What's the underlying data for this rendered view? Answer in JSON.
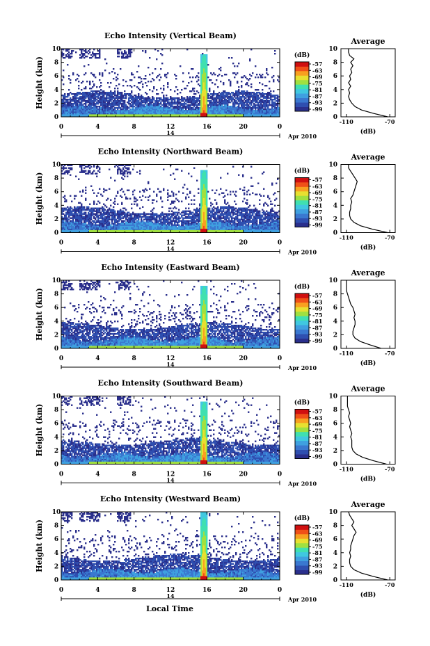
{
  "colors": {
    "colormap": [
      "#2a2f8c",
      "#2f4fb0",
      "#3a78d0",
      "#3fa0e0",
      "#40c8e0",
      "#40e0b0",
      "#a0e040",
      "#e8e030",
      "#f8a020",
      "#f05018",
      "#d01010"
    ]
  },
  "x_axis_label": "Local Time",
  "chart_data": [
    {
      "type": "heatmap",
      "title": "Echo Intensity (Vertical Beam)",
      "ylabel": "Height (km)",
      "ylim": [
        0,
        10
      ],
      "yticks": [
        "0",
        "2",
        "4",
        "6",
        "8",
        "10"
      ],
      "xlim": [
        0,
        24
      ],
      "xticks": [
        "0",
        "4",
        "8",
        "12",
        "16",
        "20",
        "0"
      ],
      "date_marker": "14",
      "date_label": "Apr 2010",
      "colorbar": {
        "unit": "(dB)",
        "ticks": [
          "-57",
          "-63",
          "-69",
          "-75",
          "-81",
          "-87",
          "-93",
          "-99"
        ]
      },
      "storm_time": 15.6,
      "profile": {
        "title": "Average",
        "xlabel": "(dB)",
        "xticks": [
          "-110",
          "-70"
        ],
        "xlim": [
          -115,
          -65
        ],
        "ylim": [
          0,
          10
        ],
        "heights": [
          0,
          0.5,
          1,
          1.5,
          2,
          2.5,
          3,
          3.5,
          4,
          4.5,
          5,
          5.5,
          6,
          6.5,
          7,
          7.5,
          8,
          8.5,
          9,
          9.5,
          10
        ],
        "values": [
          -72,
          -85,
          -96,
          -102,
          -105,
          -107,
          -108,
          -107,
          -108,
          -106,
          -108,
          -106,
          -107,
          -105,
          -106,
          -104,
          -106,
          -103,
          -107,
          -108,
          -108
        ]
      }
    },
    {
      "type": "heatmap",
      "title": "Echo Intensity (Northward Beam)",
      "ylabel": "Height (km)",
      "ylim": [
        0,
        10
      ],
      "yticks": [
        "0",
        "2",
        "4",
        "6",
        "8",
        "10"
      ],
      "xlim": [
        0,
        24
      ],
      "xticks": [
        "0",
        "4",
        "8",
        "12",
        "16",
        "20",
        "0"
      ],
      "date_marker": "14",
      "date_label": "Apr 2010",
      "colorbar": {
        "unit": "(dB)",
        "ticks": [
          "-57",
          "-63",
          "-69",
          "-75",
          "-81",
          "-87",
          "-93",
          "-99"
        ]
      },
      "storm_time": 15.6,
      "profile": {
        "title": "Average",
        "xlabel": "(dB)",
        "xticks": [
          "-110",
          "-70"
        ],
        "xlim": [
          -115,
          -65
        ],
        "ylim": [
          0,
          10
        ],
        "heights": [
          0,
          0.5,
          1,
          1.5,
          2,
          2.5,
          3,
          3.5,
          4,
          4.5,
          5,
          5.5,
          6,
          6.5,
          7,
          7.5,
          8,
          8.5,
          9,
          9.5,
          10
        ],
        "values": [
          -72,
          -86,
          -97,
          -103,
          -106,
          -107,
          -107,
          -106,
          -106,
          -105,
          -106,
          -104,
          -103,
          -102,
          -101,
          -100,
          -102,
          -104,
          -106,
          -108,
          -108
        ]
      }
    },
    {
      "type": "heatmap",
      "title": "Echo Intensity (Eastward Beam)",
      "ylabel": "Height (km)",
      "ylim": [
        0,
        10
      ],
      "yticks": [
        "0",
        "2",
        "4",
        "6",
        "8",
        "10"
      ],
      "xlim": [
        0,
        24
      ],
      "xticks": [
        "0",
        "4",
        "8",
        "12",
        "16",
        "20",
        "0"
      ],
      "date_marker": "14",
      "date_label": "Apr 2010",
      "colorbar": {
        "unit": "(dB)",
        "ticks": [
          "-57",
          "-63",
          "-69",
          "-75",
          "-81",
          "-87",
          "-93",
          "-99"
        ]
      },
      "storm_time": 15.6,
      "profile": {
        "title": "Average",
        "xlabel": "(dB)",
        "xticks": [
          "-110",
          "-70"
        ],
        "xlim": [
          -115,
          -65
        ],
        "ylim": [
          0,
          10
        ],
        "heights": [
          0,
          0.5,
          1,
          1.5,
          2,
          2.5,
          3,
          3.5,
          4,
          4.5,
          5,
          5.5,
          6,
          6.5,
          7,
          7.5,
          8,
          8.5,
          9,
          9.5,
          10
        ],
        "values": [
          -78,
          -88,
          -97,
          -102,
          -104,
          -104,
          -103,
          -102,
          -102,
          -103,
          -102,
          -103,
          -104,
          -106,
          -107,
          -108,
          -109,
          -110,
          -110,
          -110,
          -110
        ]
      }
    },
    {
      "type": "heatmap",
      "title": "Echo Intensity (Southward Beam)",
      "ylabel": "Height (km)",
      "ylim": [
        0,
        10
      ],
      "yticks": [
        "0",
        "2",
        "4",
        "6",
        "8",
        "10"
      ],
      "xlim": [
        0,
        24
      ],
      "xticks": [
        "0",
        "4",
        "8",
        "12",
        "16",
        "20",
        "0"
      ],
      "date_marker": "14",
      "date_label": "Apr 2010",
      "colorbar": {
        "unit": "(dB)",
        "ticks": [
          "-57",
          "-63",
          "-69",
          "-75",
          "-81",
          "-87",
          "-93",
          "-99"
        ]
      },
      "storm_time": 15.6,
      "profile": {
        "title": "Average",
        "xlabel": "(dB)",
        "xticks": [
          "-110",
          "-70"
        ],
        "xlim": [
          -115,
          -65
        ],
        "ylim": [
          0,
          10
        ],
        "heights": [
          0,
          0.5,
          1,
          1.5,
          2,
          2.5,
          3,
          3.5,
          4,
          4.5,
          5,
          5.5,
          6,
          6.5,
          7,
          7.5,
          8,
          8.5,
          9,
          9.5,
          10
        ],
        "values": [
          -73,
          -85,
          -95,
          -101,
          -104,
          -105,
          -105,
          -105,
          -106,
          -105,
          -106,
          -107,
          -106,
          -107,
          -108,
          -107,
          -108,
          -109,
          -109,
          -109,
          -109
        ]
      }
    },
    {
      "type": "heatmap",
      "title": "Echo Intensity (Westward Beam)",
      "ylabel": "Height (km)",
      "ylim": [
        0,
        10
      ],
      "yticks": [
        "0",
        "2",
        "4",
        "6",
        "8",
        "10"
      ],
      "xlim": [
        0,
        24
      ],
      "xticks": [
        "0",
        "4",
        "8",
        "12",
        "16",
        "20",
        "0"
      ],
      "date_marker": "14",
      "date_label": "Apr 2010",
      "colorbar": {
        "unit": "(dB)",
        "ticks": [
          "-57",
          "-63",
          "-69",
          "-75",
          "-81",
          "-87",
          "-93",
          "-99"
        ]
      },
      "storm_time": 15.6,
      "profile": {
        "title": "Average",
        "xlabel": "(dB)",
        "xticks": [
          "-110",
          "-70"
        ],
        "xlim": [
          -115,
          -65
        ],
        "ylim": [
          0,
          10
        ],
        "heights": [
          0,
          0.5,
          1,
          1.5,
          2,
          2.5,
          3,
          3.5,
          4,
          4.5,
          5,
          5.5,
          6,
          6.5,
          7,
          7.5,
          8,
          8.5,
          9,
          9.5,
          10
        ],
        "values": [
          -72,
          -85,
          -96,
          -103,
          -106,
          -107,
          -107,
          -106,
          -107,
          -106,
          -106,
          -105,
          -104,
          -103,
          -101,
          -103,
          -105,
          -103,
          -105,
          -107,
          -108
        ]
      }
    }
  ]
}
